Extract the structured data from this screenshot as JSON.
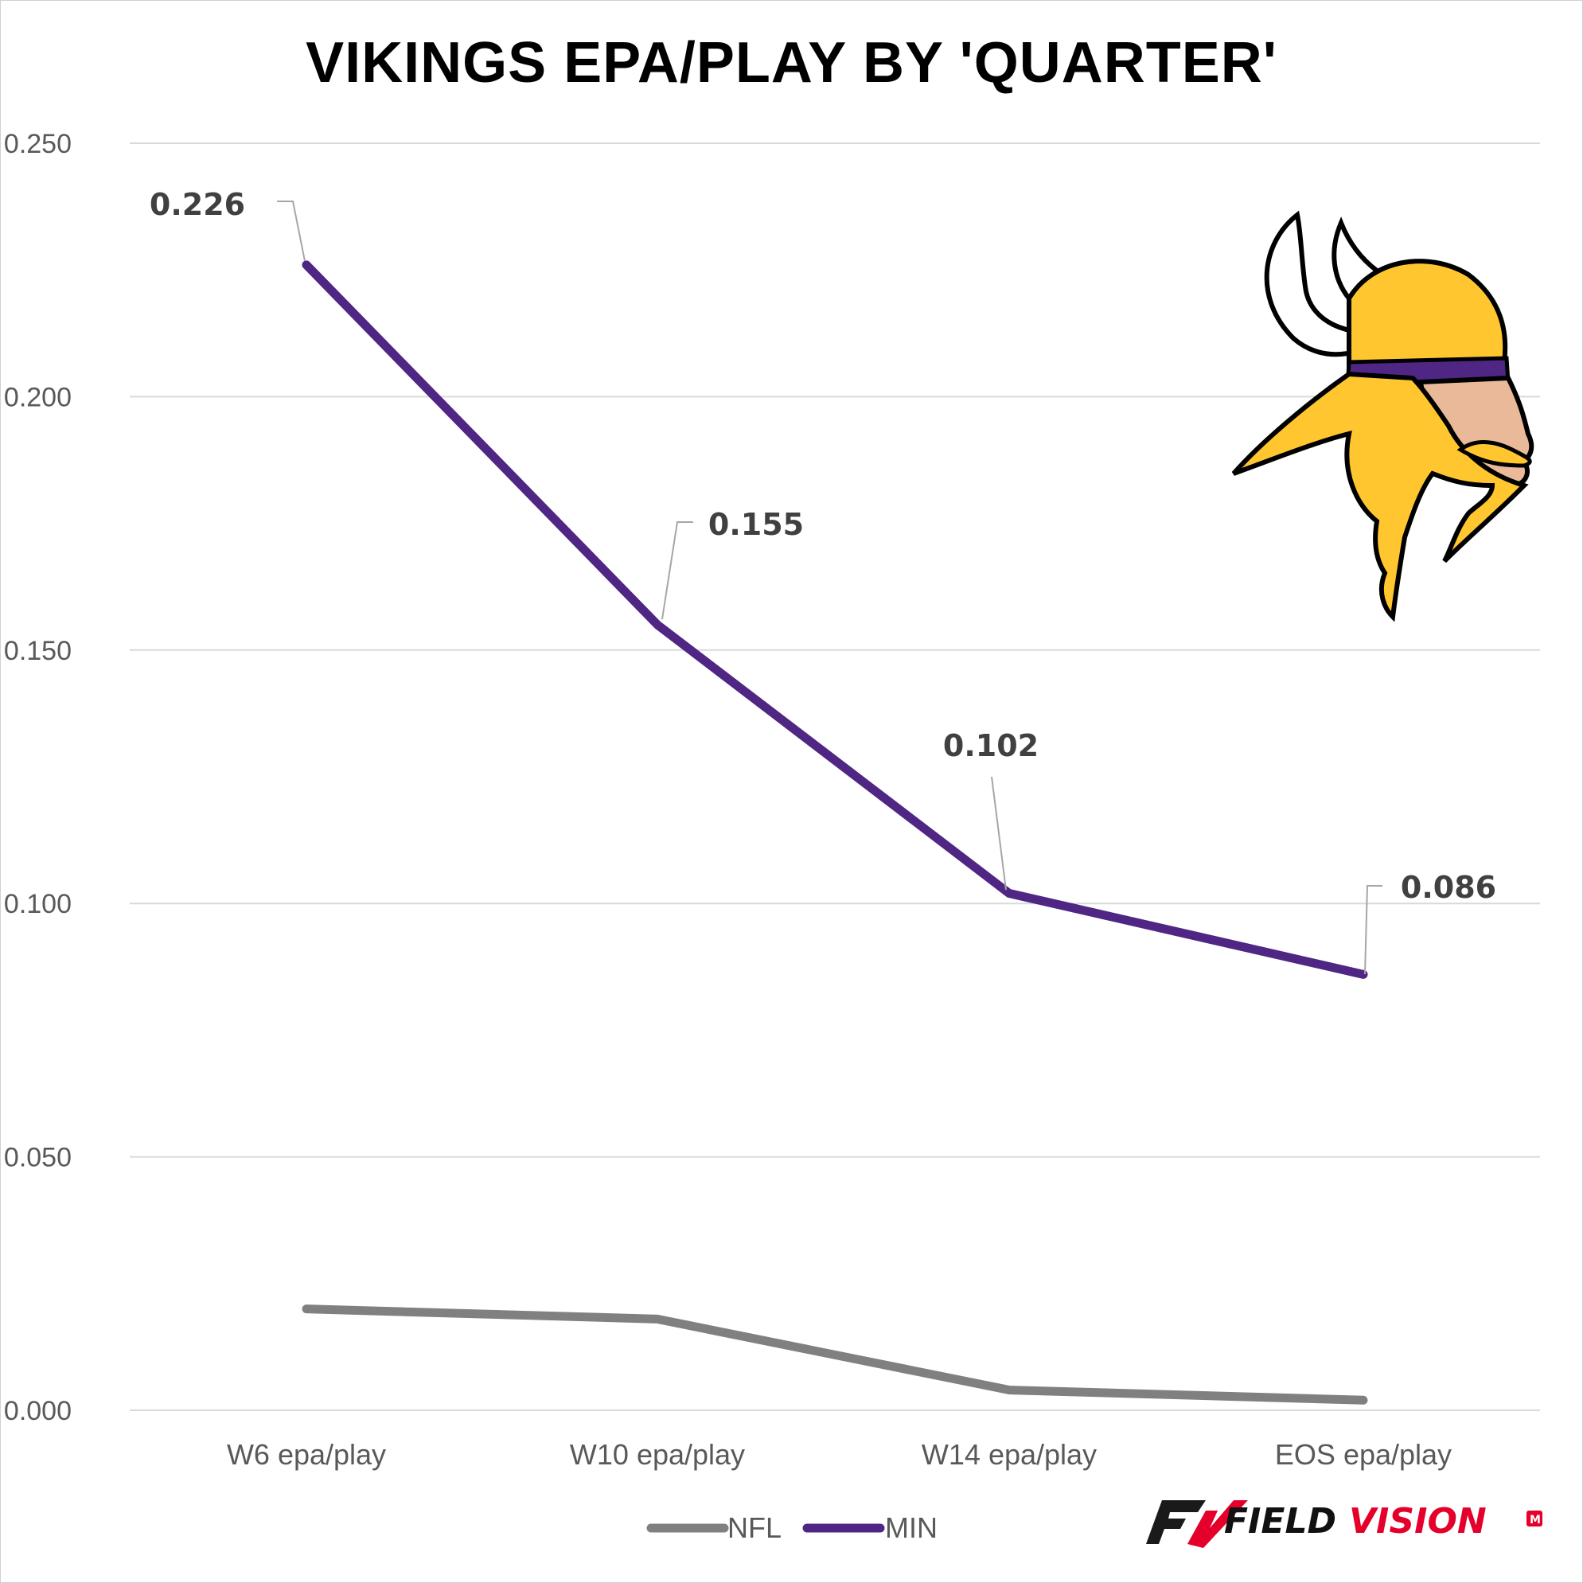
{
  "chart_data": {
    "type": "line",
    "title": "VIKINGS EPA/PLAY BY 'QUARTER'",
    "categories": [
      "W6 epa/play",
      "W10 epa/play",
      "W14 epa/play",
      "EOS epa/play"
    ],
    "ylim": [
      0,
      0.25
    ],
    "yticks": [
      "0.000",
      "0.050",
      "0.100",
      "0.150",
      "0.200",
      "0.250"
    ],
    "ytick_values": [
      0,
      0.05,
      0.1,
      0.15,
      0.2,
      0.25
    ],
    "grid": true,
    "legend_position": "bottom",
    "series": [
      {
        "name": "NFL",
        "color": "#808080",
        "values": [
          0.02,
          0.018,
          0.004,
          0.002
        ]
      },
      {
        "name": "MIN",
        "color": "#4f2683",
        "values": [
          0.226,
          0.155,
          0.102,
          0.086
        ],
        "data_labels": [
          "0.226",
          "0.155",
          "0.102",
          "0.086"
        ]
      }
    ]
  },
  "logo": {
    "name": "vikings-logo",
    "colors": {
      "gold": "#ffc62f",
      "purple": "#4f2683",
      "skin": "#e9b99a"
    }
  },
  "brand": {
    "text_dark": "FIELD",
    "text_accent": "VISION",
    "badge": "M",
    "accent_color": "#e4002b"
  }
}
